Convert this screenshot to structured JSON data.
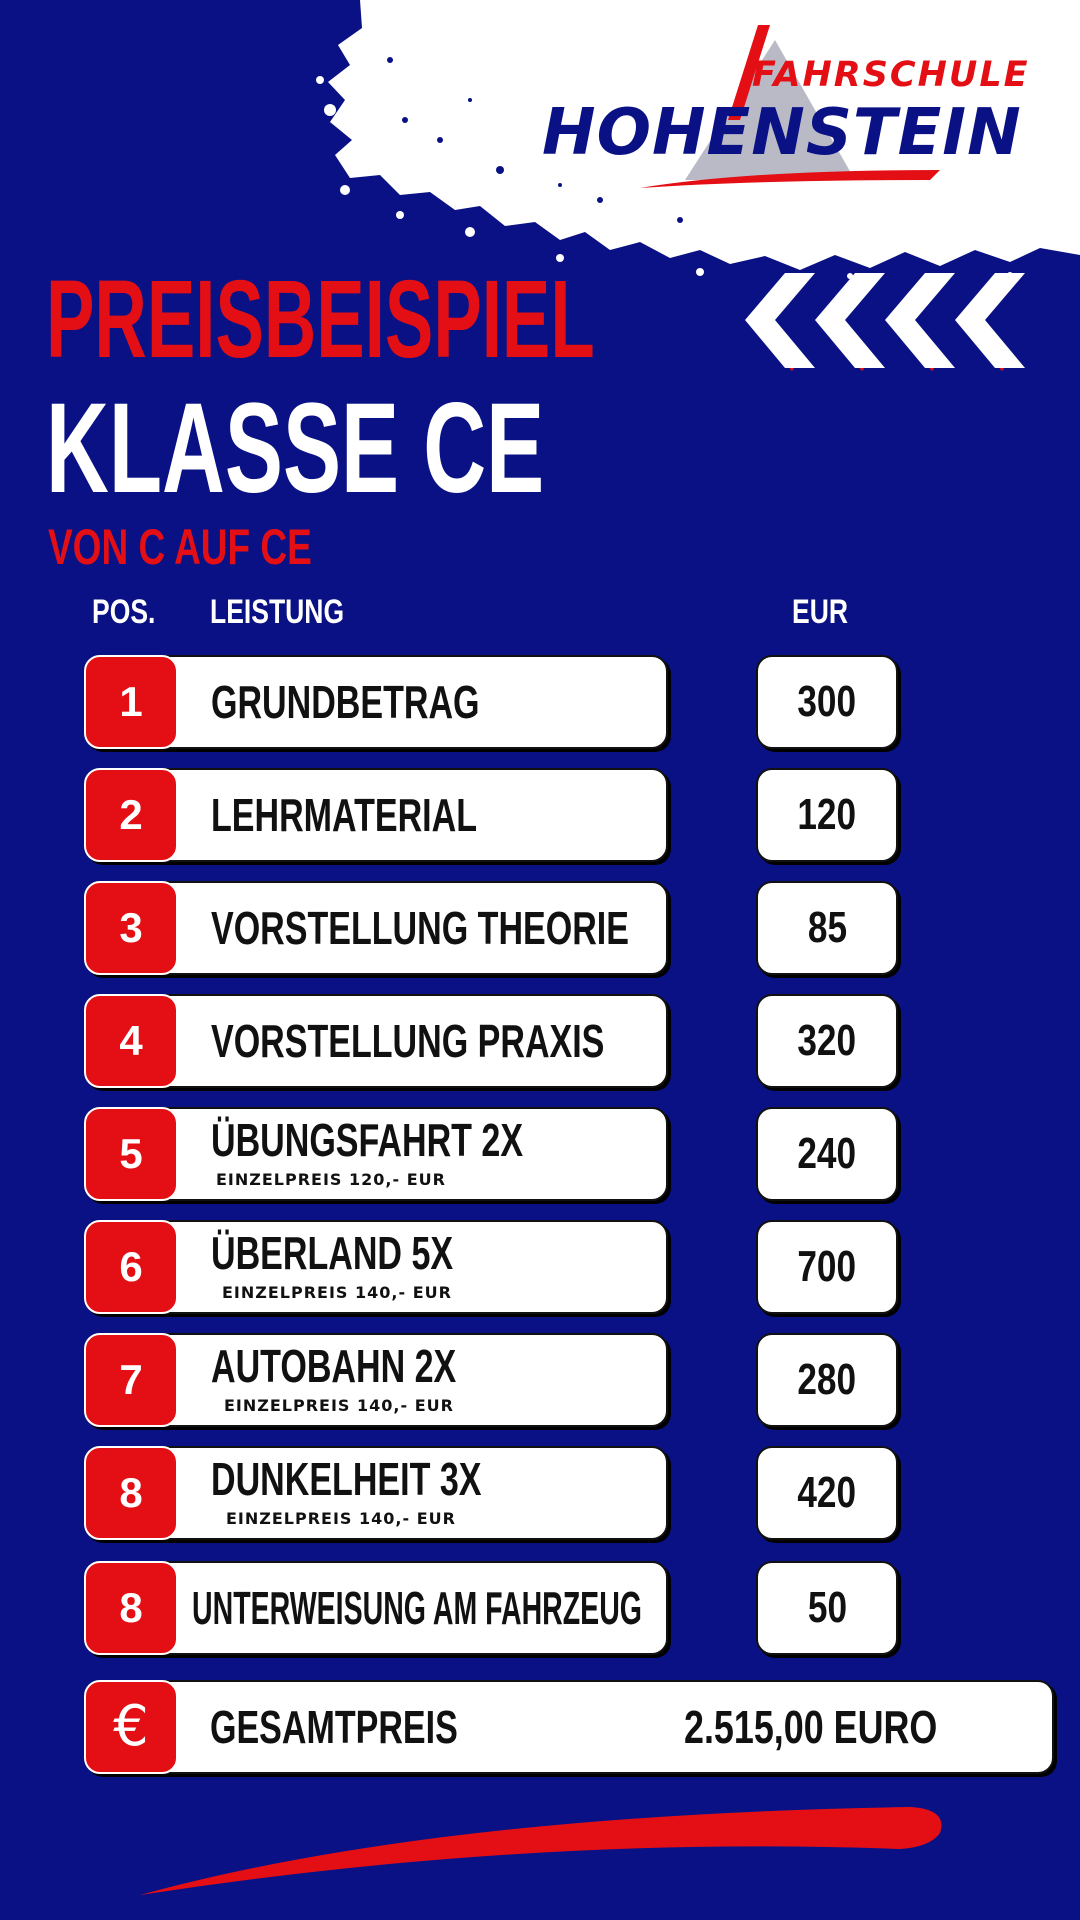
{
  "brand": {
    "line1": "FAHRSCHULE",
    "line2": "HOHENSTEIN"
  },
  "headline": {
    "title": "PREISBEISPIEL",
    "class": "KLASSE CE",
    "subtitle": "VON C AUF CE"
  },
  "columns": {
    "pos": "POS.",
    "service": "LEISTUNG",
    "currency": "EUR"
  },
  "items": [
    {
      "pos": "1",
      "label": "GRUNDBETRAG",
      "sub": "",
      "price": "300"
    },
    {
      "pos": "2",
      "label": "LEHRMATERIAL",
      "sub": "",
      "price": "120"
    },
    {
      "pos": "3",
      "label": "VORSTELLUNG THEORIE",
      "sub": "",
      "price": "85"
    },
    {
      "pos": "4",
      "label": "VORSTELLUNG PRAXIS",
      "sub": "",
      "price": "320"
    },
    {
      "pos": "5",
      "label": "ÜBUNGSFAHRT 2X",
      "sub": "EINZELPREIS 120,- EUR",
      "price": "240"
    },
    {
      "pos": "6",
      "label": "ÜBERLAND 5X",
      "sub": "EINZELPREIS 140,- EUR",
      "price": "700"
    },
    {
      "pos": "7",
      "label": "AUTOBAHN 2X",
      "sub": "EINZELPREIS 140,- EUR",
      "price": "280"
    },
    {
      "pos": "8",
      "label": "DUNKELHEIT 3X",
      "sub": "EINZELPREIS 140,- EUR",
      "price": "420"
    },
    {
      "pos": "8",
      "label": "UNTERWEISUNG AM FAHRZEUG",
      "sub": "",
      "price": "50"
    }
  ],
  "total": {
    "icon": "euro-icon",
    "symbol": "€",
    "label": "GESAMTPREIS",
    "value": "2.515,00 EURO"
  },
  "colors": {
    "background": "#0a1185",
    "accent": "#e40f14",
    "card": "#ffffff"
  }
}
